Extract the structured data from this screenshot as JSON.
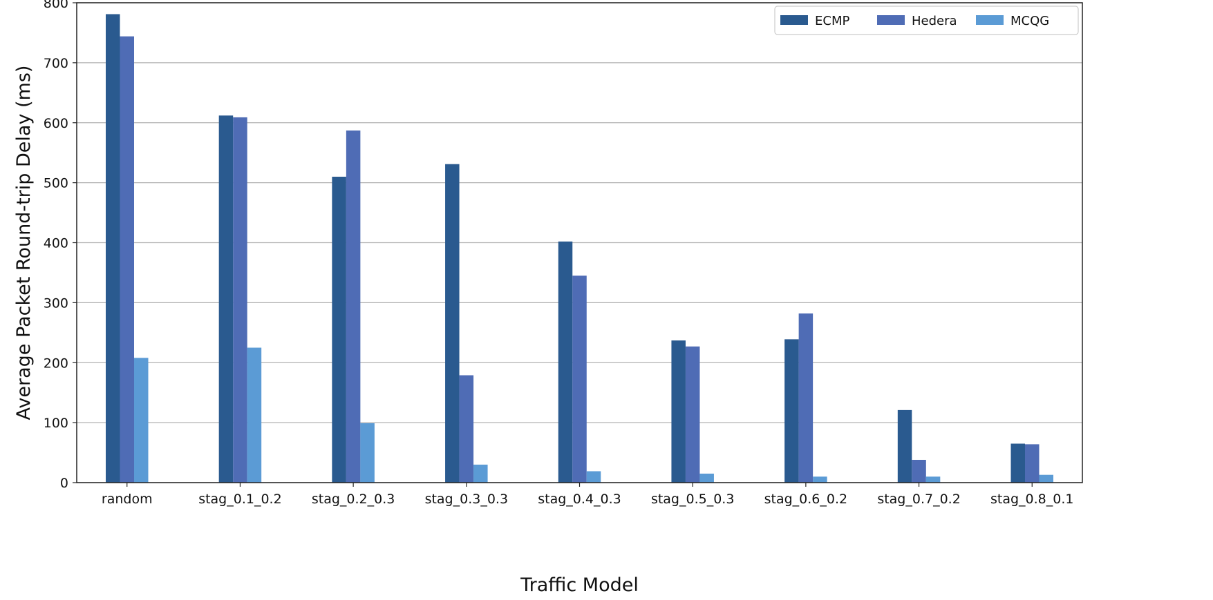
{
  "chart_data": {
    "type": "bar",
    "title": "",
    "xlabel": "Traffic Model",
    "ylabel": "Average Packet Round-trip Delay (ms)",
    "ylim": [
      0,
      800
    ],
    "yticks": [
      0,
      100,
      200,
      300,
      400,
      500,
      600,
      700,
      800
    ],
    "grid": "horizontal",
    "legend_position": "top-right",
    "categories": [
      "random",
      "stag_0.1_0.2",
      "stag_0.2_0.3",
      "stag_0.3_0.3",
      "stag_0.4_0.3",
      "stag_0.5_0.3",
      "stag_0.6_0.2",
      "stag_0.7_0.2",
      "stag_0.8_0.1"
    ],
    "series": [
      {
        "name": "ECMP",
        "color": "#2a5a8f",
        "values": [
          781,
          612,
          510,
          531,
          402,
          237,
          239,
          121,
          65
        ]
      },
      {
        "name": "Hedera",
        "color": "#4f6cb5",
        "values": [
          744,
          609,
          587,
          179,
          345,
          227,
          282,
          38,
          64
        ]
      },
      {
        "name": "MCQG",
        "color": "#5b9bd5",
        "values": [
          208,
          225,
          99,
          30,
          19,
          15,
          10,
          10,
          13
        ]
      }
    ]
  }
}
